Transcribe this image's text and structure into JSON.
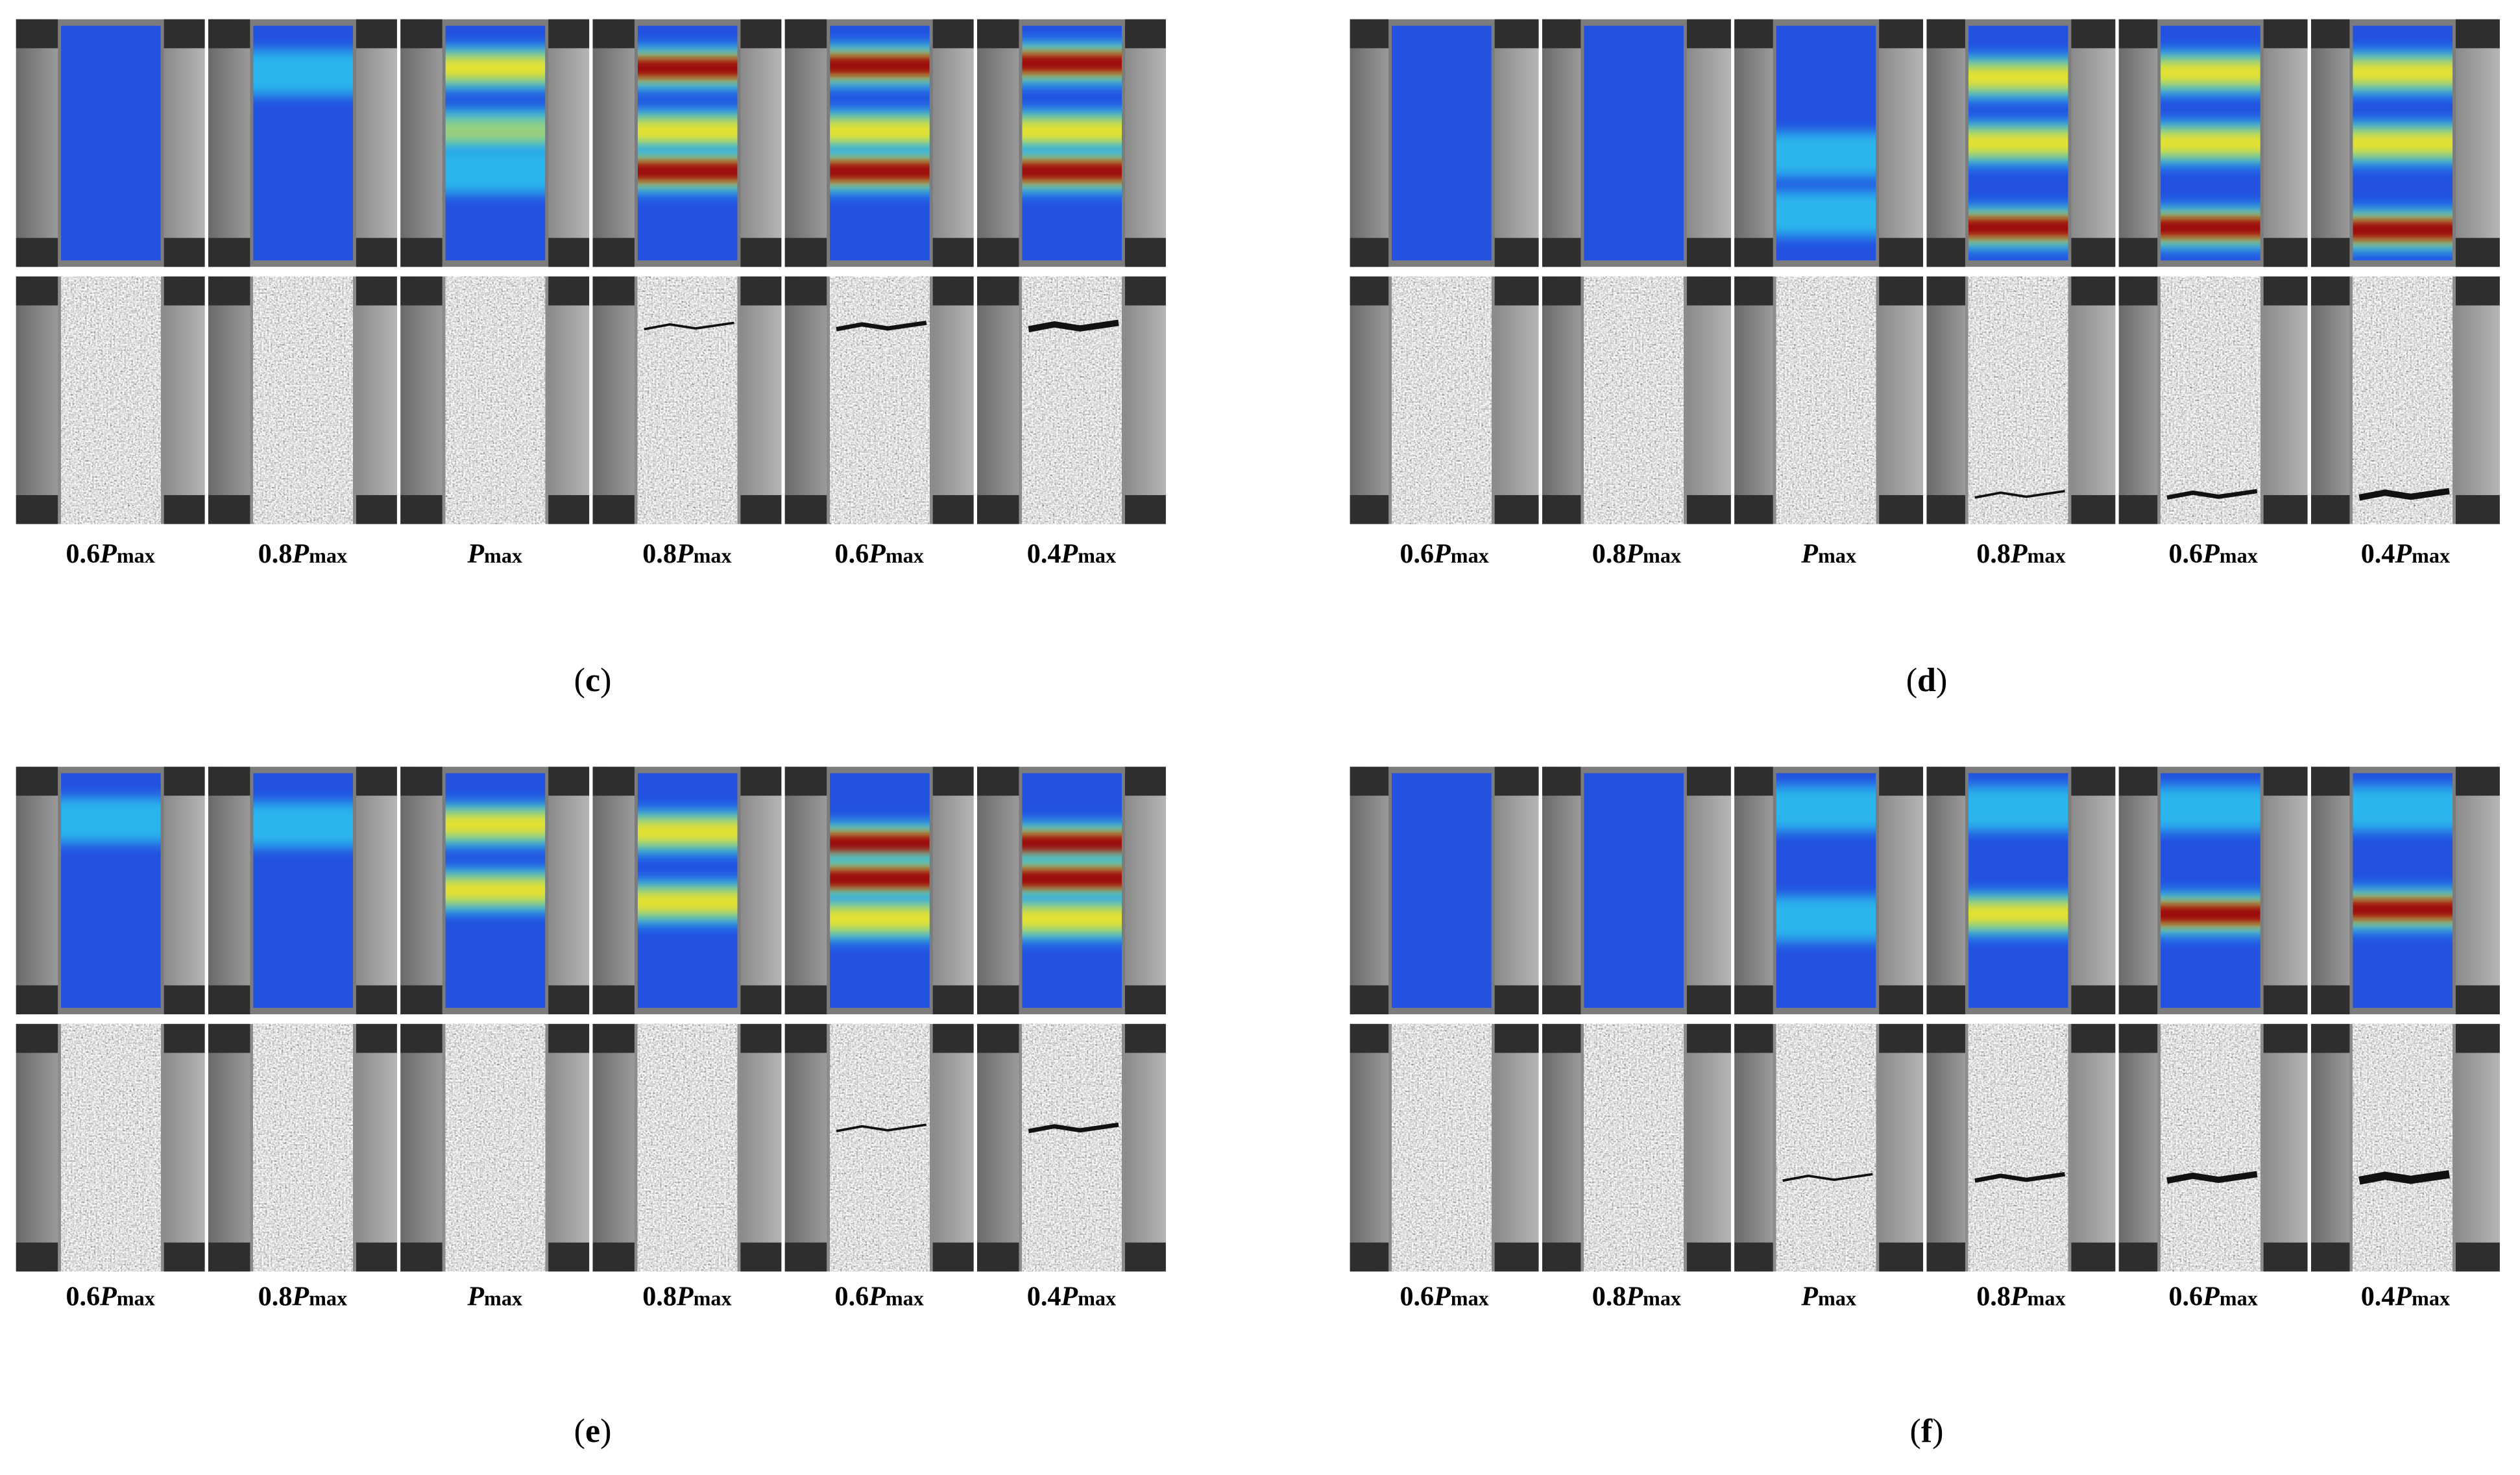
{
  "panels": [
    {
      "caption": [
        "(",
        "c",
        ")"
      ],
      "frames": [
        {
          "prefix": "0.6",
          "symbol": "P",
          "sub": "max"
        },
        {
          "prefix": "0.8",
          "symbol": "P",
          "sub": "max"
        },
        {
          "symbol": "P",
          "sub": "max"
        },
        {
          "prefix": "0.8",
          "symbol": "P",
          "sub": "max"
        },
        {
          "prefix": "0.6",
          "symbol": "P",
          "sub": "max"
        },
        {
          "prefix": "0.4",
          "symbol": "P",
          "sub": "max"
        }
      ]
    },
    {
      "caption": [
        "(",
        "d",
        ")"
      ],
      "frames": [
        {
          "prefix": "0.6",
          "symbol": "P",
          "sub": "max"
        },
        {
          "prefix": "0.8",
          "symbol": "P",
          "sub": "max"
        },
        {
          "symbol": "P",
          "sub": "max"
        },
        {
          "prefix": "0.8",
          "symbol": "P",
          "sub": "max"
        },
        {
          "prefix": "0.6",
          "symbol": "P",
          "sub": "max"
        },
        {
          "prefix": "0.4",
          "symbol": "P",
          "sub": "max"
        }
      ]
    },
    {
      "caption": [
        "(",
        "e",
        ")"
      ],
      "frames": [
        {
          "prefix": "0.6",
          "symbol": "P",
          "sub": "max"
        },
        {
          "prefix": "0.8",
          "symbol": "P",
          "sub": "max"
        },
        {
          "symbol": "P",
          "sub": "max"
        },
        {
          "prefix": "0.8",
          "symbol": "P",
          "sub": "max"
        },
        {
          "prefix": "0.6",
          "symbol": "P",
          "sub": "max"
        },
        {
          "prefix": "0.4",
          "symbol": "P",
          "sub": "max"
        }
      ]
    },
    {
      "caption": [
        "(",
        "f",
        ")"
      ],
      "frames": [
        {
          "prefix": "0.6",
          "symbol": "P",
          "sub": "max"
        },
        {
          "prefix": "0.8",
          "symbol": "P",
          "sub": "max"
        },
        {
          "symbol": "P",
          "sub": "max"
        },
        {
          "prefix": "0.8",
          "symbol": "P",
          "sub": "max"
        },
        {
          "prefix": "0.6",
          "symbol": "P",
          "sub": "max"
        },
        {
          "prefix": "0.4",
          "symbol": "P",
          "sub": "max"
        }
      ]
    }
  ]
}
